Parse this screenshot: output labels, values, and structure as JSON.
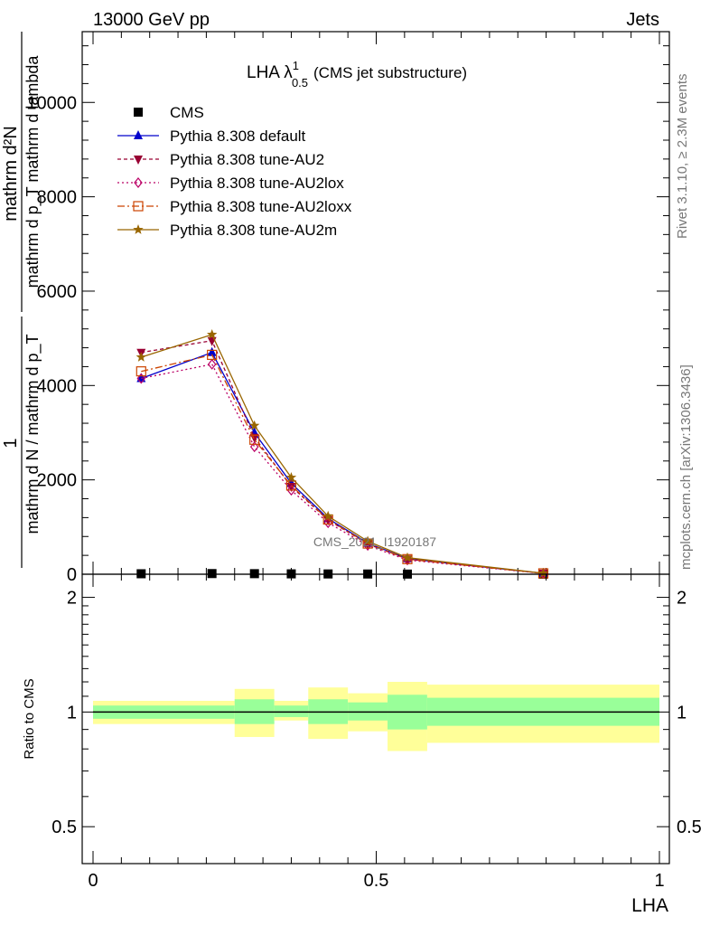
{
  "header": {
    "left": "13000 GeV pp",
    "right": "Jets"
  },
  "side_text": {
    "rivet": "Rivet 3.1.10, ≥ 2.3M events",
    "mcplots": "mcplots.cern.ch [arXiv:1306.3436]"
  },
  "watermark": "CMS_2021_I1920187",
  "colors": {
    "cms": "#000000",
    "default": "#0000cc",
    "au2": "#990033",
    "au2lox": "#bb0066",
    "au2loxx": "#cc4400",
    "au2m": "#996600",
    "band_inner": "#99ff99",
    "band_outer": "#ffff99"
  },
  "chart_data": [
    {
      "type": "line",
      "title_main": "LHA λ",
      "title_sup": "1",
      "title_sub": "0.5",
      "title_suffix": "(CMS jet substructure)",
      "ylabel_num": "mathrm d²N",
      "ylabel_den": "mathrm d p_T mathrm d lambda",
      "ylabel_pre_num": "1",
      "ylabel_pre_den": "mathrm d N / mathrm d p_T",
      "xlim": [
        0,
        1
      ],
      "ylim": [
        0,
        11500
      ],
      "y_ticks": [
        0,
        2000,
        4000,
        6000,
        8000,
        10000
      ],
      "y_tick_labels": [
        "0",
        "2000",
        "4000",
        "6000",
        "8000",
        "10000"
      ],
      "legend_position": "top-left",
      "x": [
        0.085,
        0.21,
        0.285,
        0.35,
        0.415,
        0.485,
        0.555,
        0.795
      ],
      "series": [
        {
          "name": "CMS",
          "key": "cms",
          "marker": "square",
          "dash": "",
          "values": [
            10,
            14,
            12,
            8,
            6,
            5,
            3,
            1
          ]
        },
        {
          "name": "Pythia 8.308 default",
          "key": "default",
          "marker": "triangle-up",
          "dash": "",
          "values": [
            4150,
            4700,
            3000,
            1930,
            1180,
            660,
            330,
            20
          ]
        },
        {
          "name": "Pythia 8.308 tune-AU2",
          "key": "au2",
          "marker": "triangle-down",
          "dash": "4,3",
          "values": [
            4700,
            4950,
            2900,
            1860,
            1150,
            640,
            320,
            20
          ]
        },
        {
          "name": "Pythia 8.308 tune-AU2lox",
          "key": "au2lox",
          "marker": "diamond-open",
          "dash": "2,3",
          "values": [
            4150,
            4450,
            2700,
            1780,
            1090,
            610,
            300,
            18
          ]
        },
        {
          "name": "Pythia 8.308 tune-AU2loxx",
          "key": "au2loxx",
          "marker": "square-open",
          "dash": "8,3,2,3",
          "values": [
            4300,
            4650,
            2850,
            1880,
            1160,
            650,
            320,
            19
          ]
        },
        {
          "name": "Pythia 8.308 tune-AU2m",
          "key": "au2m",
          "marker": "star",
          "dash": "",
          "values": [
            4600,
            5080,
            3150,
            2050,
            1230,
            700,
            350,
            22
          ]
        }
      ]
    },
    {
      "type": "area",
      "ylabel": "Ratio to CMS",
      "xlabel": "LHA",
      "xlim": [
        0,
        1
      ],
      "ylim": [
        0.4,
        2.3
      ],
      "log_y": true,
      "x_ticks": [
        0,
        0.5,
        1
      ],
      "x_tick_labels": [
        "0",
        "0.5",
        "1"
      ],
      "y_ticks": [
        0.5,
        1,
        2
      ],
      "y_tick_labels": [
        "0.5",
        "1",
        "2"
      ],
      "bins": [
        {
          "lo": 0.0,
          "hi": 0.25,
          "inner": [
            0.96,
            1.04
          ],
          "outer": [
            0.93,
            1.07
          ]
        },
        {
          "lo": 0.25,
          "hi": 0.32,
          "inner": [
            0.93,
            1.08
          ],
          "outer": [
            0.86,
            1.15
          ]
        },
        {
          "lo": 0.32,
          "hi": 0.38,
          "inner": [
            0.97,
            1.04
          ],
          "outer": [
            0.95,
            1.07
          ]
        },
        {
          "lo": 0.38,
          "hi": 0.45,
          "inner": [
            0.93,
            1.08
          ],
          "outer": [
            0.85,
            1.16
          ]
        },
        {
          "lo": 0.45,
          "hi": 0.52,
          "inner": [
            0.95,
            1.06
          ],
          "outer": [
            0.89,
            1.12
          ]
        },
        {
          "lo": 0.52,
          "hi": 0.59,
          "inner": [
            0.9,
            1.11
          ],
          "outer": [
            0.79,
            1.2
          ]
        },
        {
          "lo": 0.59,
          "hi": 1.0,
          "inner": [
            0.92,
            1.09
          ],
          "outer": [
            0.83,
            1.18
          ]
        }
      ],
      "reference_line": 1
    }
  ]
}
